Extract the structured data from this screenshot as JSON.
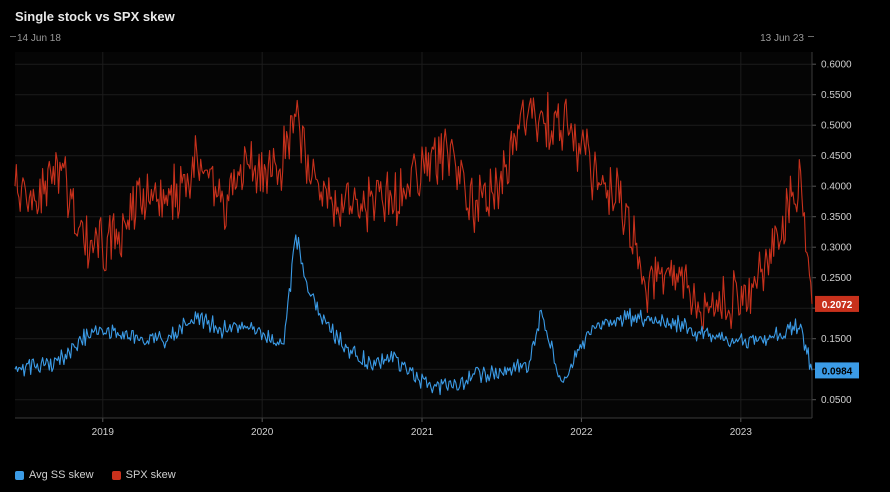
{
  "chart_data": {
    "type": "line",
    "title": "Single stock vs SPX skew",
    "date_range": {
      "start": "14 Jun 18",
      "end": "13 Jun 23"
    },
    "xlabel": "",
    "ylabel": "",
    "x_ticks": [
      "2019",
      "2020",
      "2021",
      "2022",
      "2023"
    ],
    "x_range": [
      "2018-06-14",
      "2023-06-13"
    ],
    "y_ticks": [
      "0.0500",
      "0.1000",
      "0.1500",
      "0.2000",
      "0.2500",
      "0.3000",
      "0.3500",
      "0.4000",
      "0.4500",
      "0.5000",
      "0.5500",
      "0.6000"
    ],
    "ylim": [
      0.02,
      0.62
    ],
    "grid": true,
    "legend_position": "bottom-left",
    "series": [
      {
        "name": "Avg SS skew",
        "color": "#3b9be6",
        "last_value_label": "0.0984",
        "x": [
          "2018-06-14",
          "2018-08-01",
          "2018-10-01",
          "2018-12-01",
          "2019-02-01",
          "2019-04-01",
          "2019-06-01",
          "2019-08-01",
          "2019-10-01",
          "2019-12-01",
          "2020-01-15",
          "2020-02-20",
          "2020-03-18",
          "2020-04-15",
          "2020-05-15",
          "2020-07-01",
          "2020-09-01",
          "2020-11-01",
          "2021-01-01",
          "2021-03-01",
          "2021-05-01",
          "2021-07-01",
          "2021-09-01",
          "2021-10-01",
          "2021-11-15",
          "2021-12-20",
          "2022-02-01",
          "2022-04-01",
          "2022-06-01",
          "2022-08-01",
          "2022-10-01",
          "2022-12-01",
          "2023-02-01",
          "2023-04-01",
          "2023-05-15",
          "2023-06-13"
        ],
        "y": [
          0.1,
          0.105,
          0.115,
          0.16,
          0.16,
          0.145,
          0.15,
          0.185,
          0.165,
          0.17,
          0.15,
          0.14,
          0.32,
          0.23,
          0.19,
          0.14,
          0.11,
          0.115,
          0.08,
          0.07,
          0.09,
          0.095,
          0.105,
          0.19,
          0.08,
          0.125,
          0.17,
          0.185,
          0.18,
          0.175,
          0.16,
          0.15,
          0.145,
          0.16,
          0.175,
          0.098
        ]
      },
      {
        "name": "SPX skew",
        "color": "#c8311c",
        "last_value_label": "0.2072",
        "x": [
          "2018-06-14",
          "2018-08-01",
          "2018-10-01",
          "2018-12-01",
          "2019-02-01",
          "2019-04-01",
          "2019-06-01",
          "2019-08-01",
          "2019-10-01",
          "2019-12-01",
          "2020-01-15",
          "2020-02-20",
          "2020-03-18",
          "2020-04-15",
          "2020-05-15",
          "2020-07-01",
          "2020-09-01",
          "2020-11-01",
          "2021-01-01",
          "2021-03-01",
          "2021-05-01",
          "2021-07-01",
          "2021-09-01",
          "2021-10-01",
          "2021-11-15",
          "2021-12-20",
          "2022-02-01",
          "2022-04-01",
          "2022-06-01",
          "2022-08-01",
          "2022-10-01",
          "2022-12-01",
          "2023-02-01",
          "2023-04-01",
          "2023-05-15",
          "2023-06-13"
        ],
        "y": [
          0.4,
          0.38,
          0.42,
          0.29,
          0.31,
          0.38,
          0.37,
          0.44,
          0.38,
          0.43,
          0.43,
          0.45,
          0.52,
          0.42,
          0.39,
          0.36,
          0.37,
          0.38,
          0.42,
          0.46,
          0.37,
          0.41,
          0.52,
          0.5,
          0.51,
          0.47,
          0.42,
          0.38,
          0.23,
          0.27,
          0.19,
          0.21,
          0.23,
          0.33,
          0.42,
          0.207
        ]
      }
    ]
  }
}
